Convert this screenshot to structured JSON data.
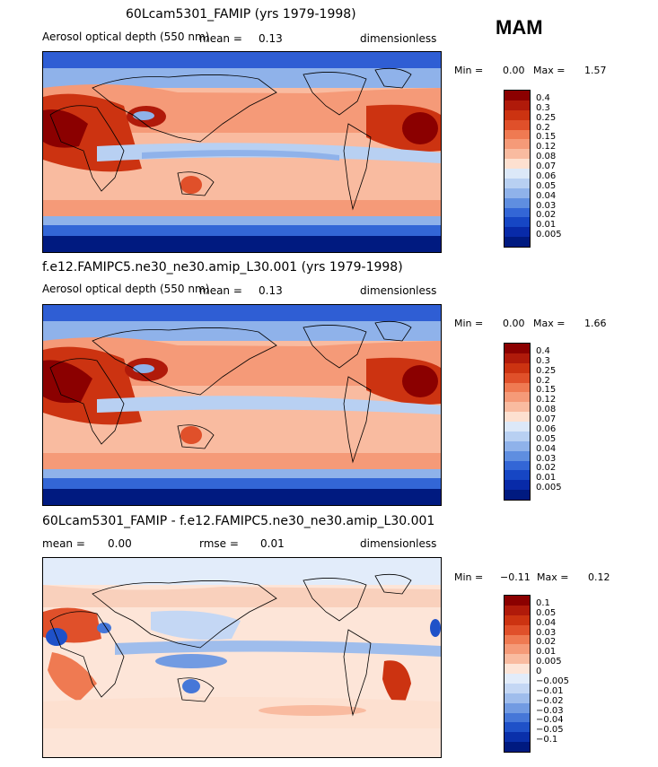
{
  "season": "MAM",
  "panels": [
    {
      "title": "60Lcam5301_FAMIP (yrs 1979-1998)",
      "left_label": "Aerosol optical depth (550 nm)",
      "mean_label": "mean =",
      "mean_value": "0.13",
      "units": "dimensionless",
      "min_label": "Min =",
      "min_value": "0.00",
      "max_label": "Max =",
      "max_value": "1.57",
      "levels": [
        "0.4",
        "0.3",
        "0.25",
        "0.2",
        "0.15",
        "0.12",
        "0.08",
        "0.07",
        "0.06",
        "0.05",
        "0.04",
        "0.03",
        "0.02",
        "0.01",
        "0.005"
      ],
      "colors": [
        "#8b0000",
        "#b01a0a",
        "#cc3311",
        "#e0502a",
        "#ef7a52",
        "#f59a78",
        "#f9bba0",
        "#fde0d0",
        "#dce8f8",
        "#b8d0f2",
        "#8fb2ea",
        "#5f8ee0",
        "#3366d6",
        "#1646c4",
        "#082aa8",
        "#001a80"
      ]
    },
    {
      "title": "f.e12.FAMIPC5.ne30_ne30.amip_L30.001 (yrs 1979-1998)",
      "left_label": "Aerosol optical depth (550 nm)",
      "mean_label": "mean =",
      "mean_value": "0.13",
      "units": "dimensionless",
      "min_label": "Min =",
      "min_value": "0.00",
      "max_label": "Max =",
      "max_value": "1.66",
      "levels": [
        "0.4",
        "0.3",
        "0.25",
        "0.2",
        "0.15",
        "0.12",
        "0.08",
        "0.07",
        "0.06",
        "0.05",
        "0.04",
        "0.03",
        "0.02",
        "0.01",
        "0.005"
      ],
      "colors": [
        "#8b0000",
        "#b01a0a",
        "#cc3311",
        "#e0502a",
        "#ef7a52",
        "#f59a78",
        "#f9bba0",
        "#fde0d0",
        "#dce8f8",
        "#b8d0f2",
        "#8fb2ea",
        "#5f8ee0",
        "#3366d6",
        "#1646c4",
        "#082aa8",
        "#001a80"
      ]
    },
    {
      "title": "60Lcam5301_FAMIP - f.e12.FAMIPC5.ne30_ne30.amip_L30.001",
      "mean_label": "mean =",
      "mean_value": "0.00",
      "rmse_label": "rmse =",
      "rmse_value": "0.01",
      "units": "dimensionless",
      "min_label": "Min =",
      "min_value": "−0.11",
      "max_label": "Max =",
      "max_value": "0.12",
      "levels": [
        "0.1",
        "0.05",
        "0.04",
        "0.03",
        "0.02",
        "0.01",
        "0.005",
        "0",
        "−0.005",
        "−0.01",
        "−0.02",
        "−0.03",
        "−0.04",
        "−0.05",
        "−0.1"
      ],
      "colors": [
        "#8b0000",
        "#b01a0a",
        "#cc3311",
        "#e0502a",
        "#ef7a52",
        "#f59a78",
        "#f9bba0",
        "#fde5d8",
        "#e2ecfa",
        "#c4d7f4",
        "#9fbdec",
        "#729be2",
        "#4677d8",
        "#1f51c8",
        "#0a30aa",
        "#001a80"
      ]
    }
  ],
  "chart_data": [
    {
      "type": "heatmap",
      "title": "60Lcam5301_FAMIP (yrs 1979-1998)",
      "season": "MAM",
      "variable": "Aerosol optical depth (550 nm)",
      "mean": 0.13,
      "min": 0.0,
      "max": 1.57,
      "units": "dimensionless",
      "levels": [
        0.005,
        0.01,
        0.02,
        0.03,
        0.04,
        0.05,
        0.06,
        0.07,
        0.08,
        0.12,
        0.15,
        0.2,
        0.25,
        0.3,
        0.4
      ]
    },
    {
      "type": "heatmap",
      "title": "f.e12.FAMIPC5.ne30_ne30.amip_L30.001 (yrs 1979-1998)",
      "season": "MAM",
      "variable": "Aerosol optical depth (550 nm)",
      "mean": 0.13,
      "min": 0.0,
      "max": 1.66,
      "units": "dimensionless",
      "levels": [
        0.005,
        0.01,
        0.02,
        0.03,
        0.04,
        0.05,
        0.06,
        0.07,
        0.08,
        0.12,
        0.15,
        0.2,
        0.25,
        0.3,
        0.4
      ]
    },
    {
      "type": "heatmap",
      "title": "60Lcam5301_FAMIP - f.e12.FAMIPC5.ne30_ne30.amip_L30.001",
      "season": "MAM",
      "mean": 0.0,
      "rmse": 0.01,
      "min": -0.11,
      "max": 0.12,
      "units": "dimensionless",
      "levels": [
        -0.1,
        -0.05,
        -0.04,
        -0.03,
        -0.02,
        -0.01,
        -0.005,
        0,
        0.005,
        0.01,
        0.02,
        0.03,
        0.04,
        0.05,
        0.1
      ]
    }
  ]
}
